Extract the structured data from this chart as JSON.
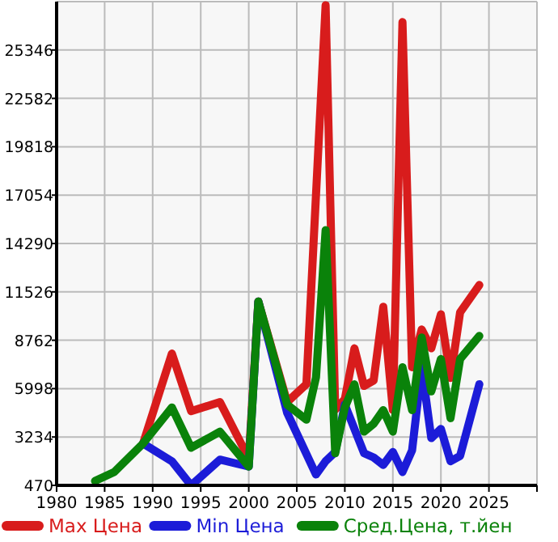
{
  "chart_data": {
    "type": "line",
    "xlim": [
      1980,
      2030
    ],
    "xticks": [
      1980,
      1985,
      1990,
      1995,
      2000,
      2005,
      2010,
      2015,
      2020,
      2025
    ],
    "ylim": [
      470,
      28110
    ],
    "yticks": [
      470,
      3234,
      5998,
      8762,
      11526,
      14290,
      17054,
      19818,
      22582,
      25346
    ],
    "grid": true,
    "legend": "bottom",
    "line_style": "solid",
    "marker": "none",
    "series": [
      {
        "name": "Max Цена",
        "color": "#d81c1c",
        "x": [
          1989,
          1992,
          1994,
          1997,
          2000,
          2001,
          2004,
          2006,
          2008,
          2009,
          2010,
          2011,
          2012,
          2013,
          2014,
          2015,
          2016,
          2017,
          2018,
          2019,
          2020,
          2021,
          2022,
          2024
        ],
        "values": [
          2865,
          8000,
          4710,
          5230,
          2010,
          10970,
          5230,
          6250,
          27900,
          4800,
          5400,
          8300,
          6150,
          6460,
          10670,
          4770,
          26940,
          7220,
          9380,
          8300,
          10240,
          6610,
          10360,
          11920
        ]
      },
      {
        "name": "Min Цена",
        "color": "#1c1cd8",
        "x": [
          1989,
          1992,
          1994,
          1997,
          2000,
          2001,
          2004,
          2007,
          2008,
          2009,
          2010,
          2012,
          2013,
          2014,
          2015,
          2016,
          2017,
          2018,
          2019,
          2020,
          2021,
          2022,
          2024
        ],
        "values": [
          2865,
          1850,
          470,
          1940,
          1545,
          10970,
          4610,
          1090,
          1850,
          2375,
          5080,
          2310,
          2065,
          1640,
          2375,
          1235,
          2470,
          7220,
          3170,
          3695,
          1850,
          2155,
          6250
        ]
      },
      {
        "name": "Сред.Цена, т.йен",
        "color": "#0a820a",
        "x": [
          1984,
          1986,
          1989,
          1992,
          1994,
          1997,
          2000,
          2001,
          2004,
          2006,
          2007,
          2008,
          2009,
          2010,
          2011,
          2012,
          2013,
          2014,
          2015,
          2016,
          2017,
          2018,
          2019,
          2020,
          2021,
          2022,
          2024
        ],
        "values": [
          720,
          1235,
          2865,
          4920,
          2620,
          3540,
          1545,
          10970,
          5080,
          4220,
          6640,
          15050,
          2310,
          4920,
          6245,
          3540,
          3990,
          4770,
          3540,
          7220,
          4770,
          8920,
          5840,
          7690,
          4310,
          7690,
          9010
        ]
      }
    ]
  }
}
